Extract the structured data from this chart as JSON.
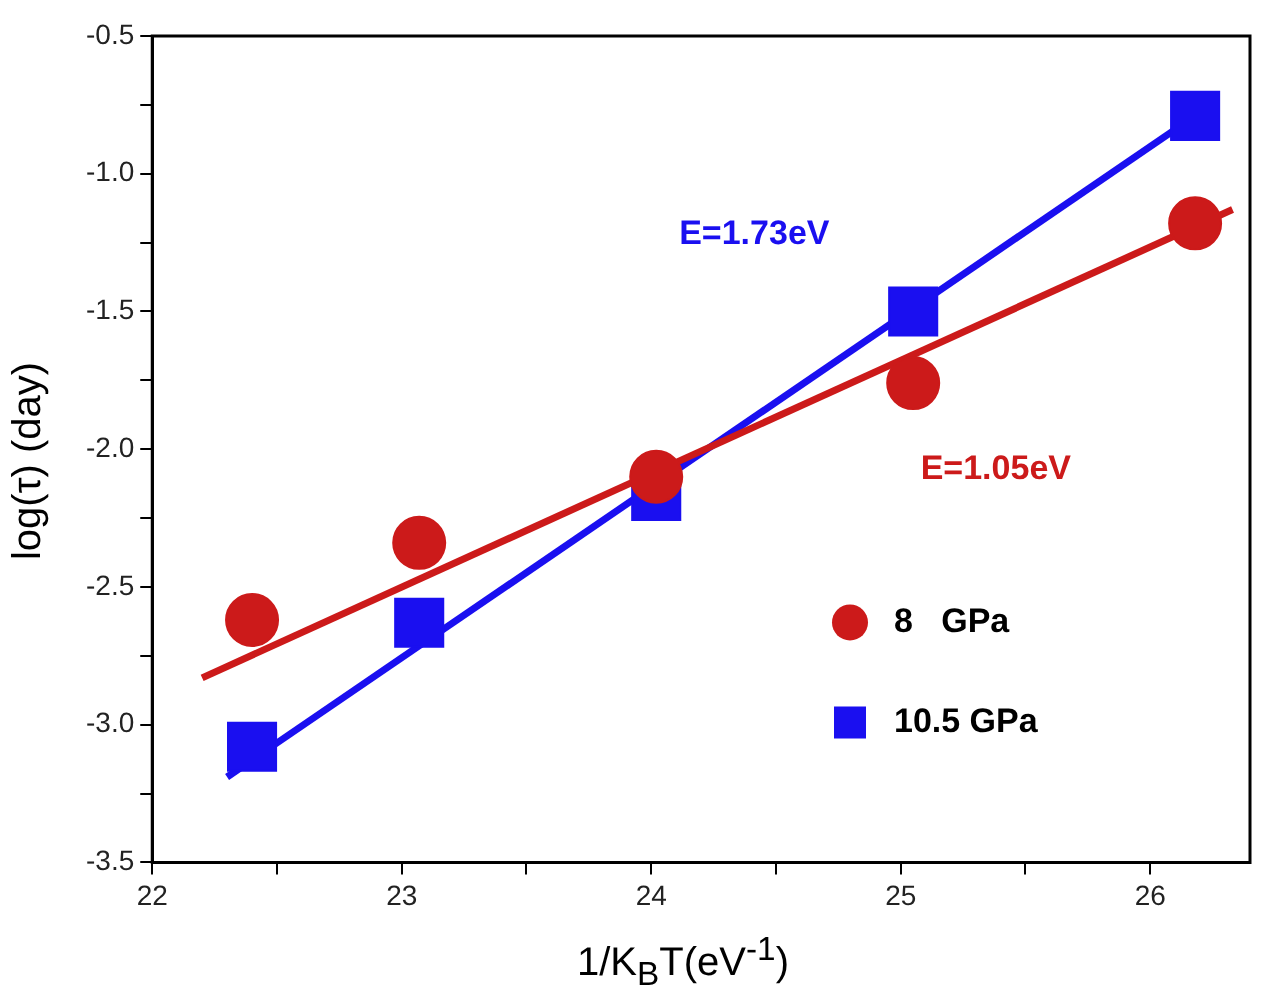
{
  "chart_data": {
    "type": "scatter",
    "xlabel": "1/K$_{B}$T(eV$^{-1}$)",
    "ylabel": "log(τ) (day)",
    "xlim": [
      22,
      26.4
    ],
    "xticks": [
      22,
      {
        "value": 22.5,
        "label": null
      },
      23,
      {
        "value": 23.5,
        "label": null
      },
      24,
      {
        "value": 24.5,
        "label": null
      },
      25,
      {
        "value": 25.5,
        "label": null
      },
      26
    ],
    "ylim": [
      -3.5,
      -0.5
    ],
    "yticks": [
      {
        "value": -3.5,
        "label": "-3.5"
      },
      {
        "value": -3.25,
        "label": null
      },
      {
        "value": -3,
        "label": "-3.0"
      },
      {
        "value": -2.75,
        "label": null
      },
      {
        "value": -2.5,
        "label": "-2.5"
      },
      {
        "value": -2.25,
        "label": null
      },
      {
        "value": -2,
        "label": "-2.0"
      },
      {
        "value": -1.75,
        "label": null
      },
      {
        "value": -1.5,
        "label": "-1.5"
      },
      {
        "value": -1.25,
        "label": null
      },
      {
        "value": -1,
        "label": "-1.0"
      },
      {
        "value": -0.75,
        "label": null
      },
      {
        "value": -0.5,
        "label": "-0.5"
      }
    ],
    "grid": false,
    "legend": "bottom right",
    "series": [
      {
        "name": "8   GPa",
        "marker": "circle",
        "color": "#cc1a1a",
        "x": [
          22.4,
          23.07,
          24.02,
          25.05,
          26.18
        ],
        "values": [
          -2.62,
          -2.34,
          -2.1,
          -1.76,
          -1.18
        ]
      },
      {
        "name": "10.5 GPa",
        "marker": "square",
        "color": "#1a0ff0",
        "x": [
          22.4,
          23.07,
          24.02,
          25.05,
          26.18
        ],
        "values": [
          -3.08,
          -2.63,
          -2.17,
          -1.5,
          -0.79
        ]
      },
      {
        "type": "line",
        "marker": "none",
        "color": "#cc1a1a",
        "x": [
          22.2,
          26.33
        ],
        "values": [
          -2.83,
          -1.13
        ]
      },
      {
        "type": "line",
        "marker": "none",
        "color": "#1a0ff0",
        "x": [
          22.3,
          26.18
        ],
        "values": [
          -3.19,
          -0.79
        ]
      }
    ],
    "annotations": [
      "E=1.05eV",
      "E=1.73eV"
    ]
  }
}
